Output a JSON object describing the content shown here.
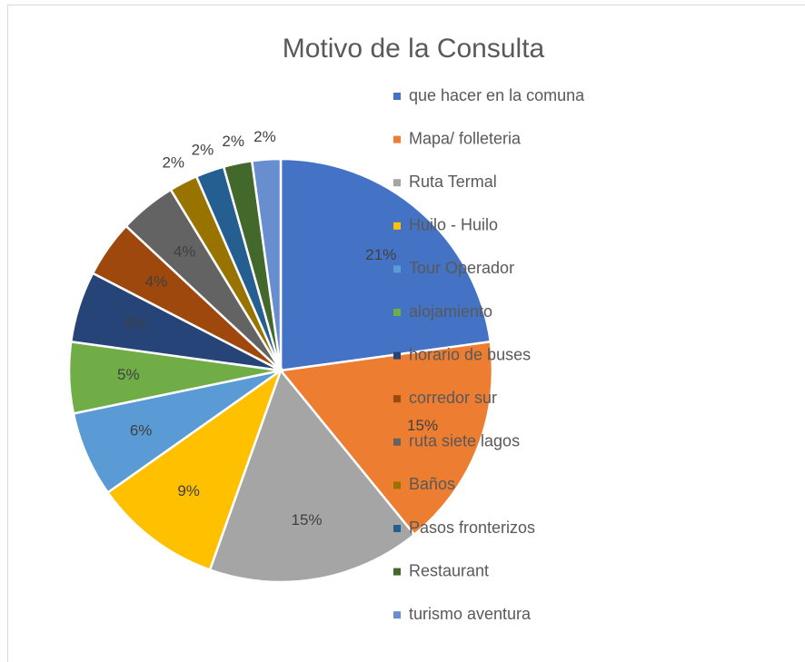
{
  "chart_data": {
    "type": "pie",
    "title": "Motivo de la Consulta",
    "categories": [
      "que hacer en la comuna",
      "Mapa/ folleteria",
      "Ruta Termal",
      "Huilo - Huilo",
      "Tour Operador",
      "alojamiento",
      "horario de buses",
      "corredor sur",
      "ruta siete lagos",
      "Baños",
      "Pasos fronterizos",
      "Restaurant",
      "turismo aventura"
    ],
    "values": [
      21,
      15,
      15,
      9,
      6,
      5,
      5,
      4,
      4,
      2,
      2,
      2,
      2
    ],
    "value_labels": [
      "21%",
      "15%",
      "15%",
      "9%",
      "6%",
      "5%",
      "5%",
      "4%",
      "4%",
      "2%",
      "2%",
      "2%",
      "2%"
    ],
    "colors": [
      "#4472c4",
      "#ed7d31",
      "#a5a5a5",
      "#ffc000",
      "#5b9bd5",
      "#70ad47",
      "#264478",
      "#9e480e",
      "#636363",
      "#997300",
      "#255e91",
      "#43682b",
      "#698ed0"
    ],
    "legend": "right"
  }
}
